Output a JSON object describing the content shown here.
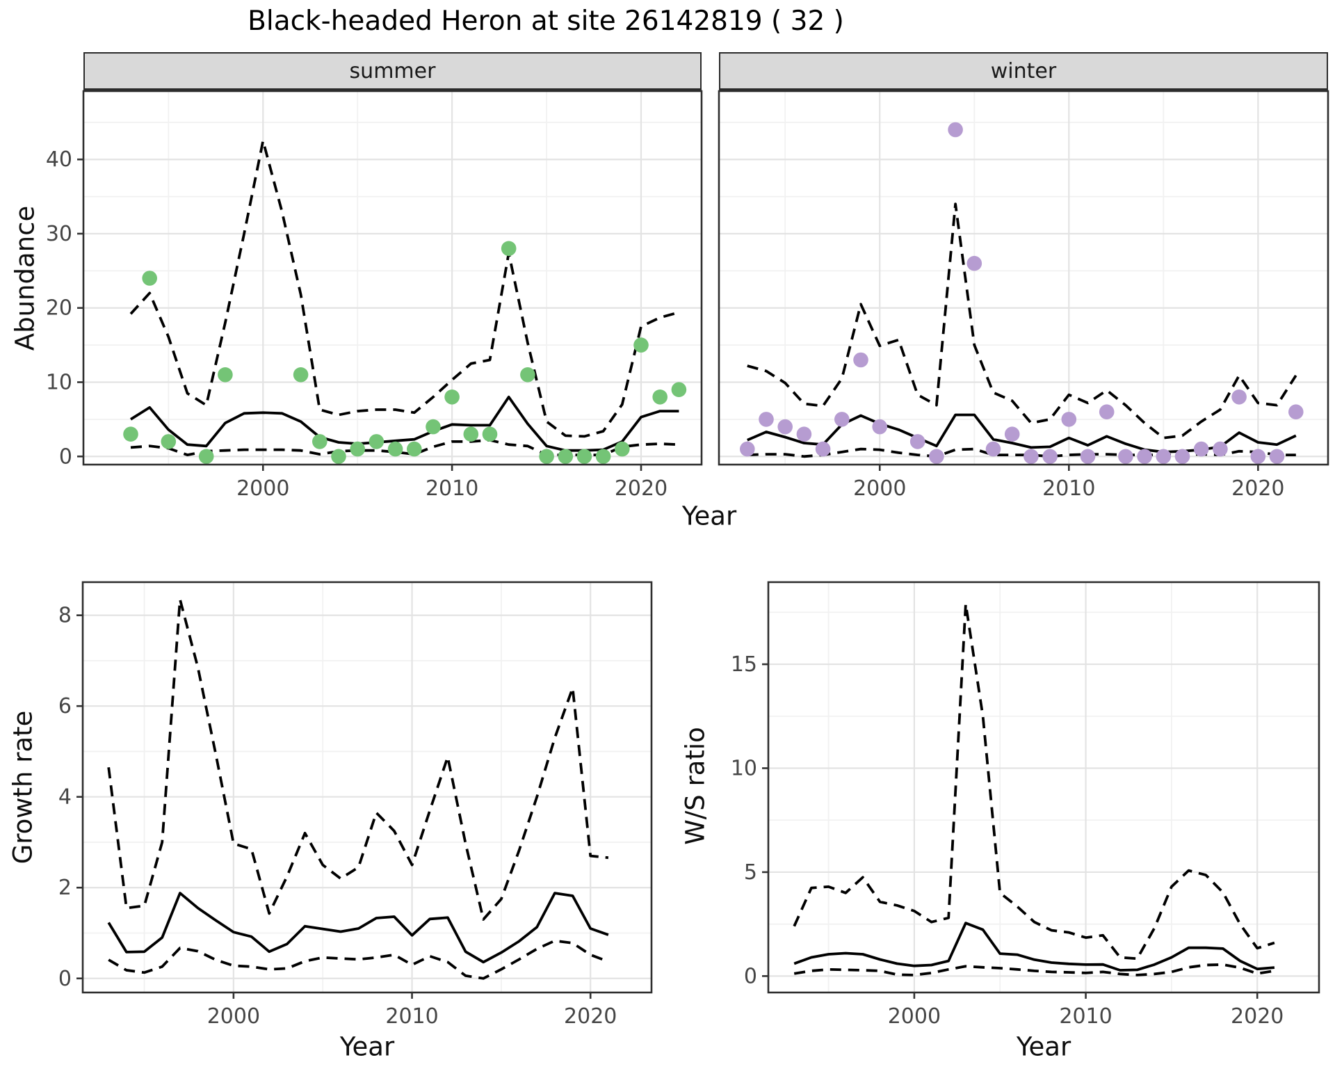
{
  "title": "Black-headed Heron at site 26142819 ( 32 )",
  "facets": {
    "summer": "summer",
    "winter": "winter"
  },
  "axes": {
    "abundance": "Abundance",
    "year": "Year",
    "growth": "Growth rate",
    "ws": "W/S ratio"
  },
  "colors": {
    "summer_point": "#74c476",
    "winter_point": "#b69cd1",
    "line": "#000000",
    "grid_major": "#e3e3e3",
    "grid_minor": "#f1f1f1",
    "panel_border": "#2e2e2e",
    "tick_mark": "#333333",
    "tick_text": "#454545",
    "strip_bg": "#d9d9d9"
  },
  "chart_data": [
    {
      "name": "summer-abundance",
      "type": "line+scatter",
      "facet": "summer",
      "ylabel": "Abundance",
      "xlabel": "Year",
      "x": [
        1993,
        1994,
        1995,
        1996,
        1997,
        1998,
        1999,
        2000,
        2001,
        2002,
        2003,
        2004,
        2005,
        2006,
        2007,
        2008,
        2009,
        2010,
        2011,
        2012,
        2013,
        2014,
        2015,
        2016,
        2017,
        2018,
        2019,
        2020,
        2021,
        2022
      ],
      "points": [
        3,
        24,
        2,
        null,
        0,
        11,
        null,
        null,
        null,
        11,
        2,
        0,
        1,
        2,
        1,
        1,
        4,
        8,
        3,
        3,
        28,
        11,
        0,
        0,
        0,
        0,
        1,
        15,
        8,
        9
      ],
      "median": [
        5.0,
        6.6,
        3.6,
        1.6,
        1.4,
        4.5,
        5.8,
        5.9,
        5.8,
        4.7,
        2.6,
        1.9,
        1.7,
        1.9,
        2.1,
        2.3,
        3.4,
        4.3,
        4.2,
        4.2,
        8.0,
        4.4,
        1.4,
        0.8,
        0.8,
        0.9,
        2.0,
        5.3,
        6.1,
        6.1
      ],
      "upper": [
        19.2,
        22.0,
        16.1,
        8.5,
        6.9,
        18.0,
        30.0,
        42.5,
        33.0,
        21.8,
        6.3,
        5.6,
        6.1,
        6.3,
        6.3,
        5.9,
        8.0,
        10.3,
        12.5,
        13.0,
        27.4,
        15.3,
        4.7,
        2.8,
        2.7,
        3.4,
        7.0,
        17.5,
        18.7,
        19.4
      ],
      "lower": [
        1.2,
        1.4,
        1.1,
        0.2,
        0.7,
        0.8,
        0.9,
        0.9,
        0.9,
        0.8,
        0.3,
        0.7,
        0.8,
        0.8,
        0.6,
        0.3,
        1.3,
        2.0,
        2.0,
        2.2,
        1.6,
        1.4,
        0.2,
        0.2,
        0.2,
        0.2,
        1.3,
        1.6,
        1.7,
        1.6
      ],
      "point_color": "#74c476",
      "xlim": [
        1990.5,
        2023.2
      ],
      "ylim": [
        -1.1,
        49.2
      ],
      "xticks": [
        2000,
        2010,
        2020
      ],
      "xticks_minor": [
        1995,
        2005,
        2015
      ],
      "yticks": [
        0,
        10,
        20,
        30,
        40
      ],
      "yticks_minor": [
        5,
        15,
        25,
        35,
        45
      ],
      "show_ytick_labels": true
    },
    {
      "name": "winter-abundance",
      "type": "line+scatter",
      "facet": "winter",
      "ylabel": "Abundance",
      "xlabel": "Year",
      "x": [
        1993,
        1994,
        1995,
        1996,
        1997,
        1998,
        1999,
        2000,
        2001,
        2002,
        2003,
        2004,
        2005,
        2006,
        2007,
        2008,
        2009,
        2010,
        2011,
        2012,
        2013,
        2014,
        2015,
        2016,
        2017,
        2018,
        2019,
        2020,
        2021,
        2022
      ],
      "points": [
        1,
        5,
        4,
        3,
        1,
        5,
        13,
        4,
        null,
        2,
        0,
        44,
        26,
        1,
        3,
        0,
        0,
        5,
        0,
        6,
        0,
        0,
        0,
        0,
        1,
        1,
        8,
        0,
        0,
        6
      ],
      "median": [
        2.2,
        3.3,
        2.6,
        1.8,
        1.6,
        4.3,
        5.5,
        4.4,
        3.6,
        2.5,
        1.4,
        5.6,
        5.6,
        2.3,
        1.8,
        1.2,
        1.3,
        2.5,
        1.5,
        2.7,
        1.7,
        0.9,
        0.6,
        0.7,
        0.9,
        1.3,
        3.2,
        1.9,
        1.6,
        2.8
      ],
      "upper": [
        12.2,
        11.5,
        9.9,
        7.1,
        6.8,
        10.5,
        20.5,
        14.9,
        15.7,
        8.3,
        6.9,
        34.0,
        15.0,
        8.6,
        7.5,
        4.5,
        5.0,
        8.3,
        7.2,
        8.9,
        6.9,
        4.5,
        2.5,
        2.8,
        4.7,
        6.3,
        10.9,
        7.2,
        6.9,
        10.9
      ],
      "lower": [
        0.2,
        0.3,
        0.3,
        0.0,
        0.2,
        0.6,
        1.0,
        0.9,
        0.5,
        0.2,
        0.0,
        0.9,
        1.0,
        0.2,
        0.2,
        0.2,
        0.0,
        0.2,
        0.3,
        0.3,
        0.2,
        0.2,
        0.2,
        0.2,
        0.3,
        0.2,
        0.7,
        0.6,
        0.2,
        0.2
      ],
      "point_color": "#b69cd1",
      "xlim": [
        1991.5,
        2023.7
      ],
      "ylim": [
        -1.1,
        49.2
      ],
      "xticks": [
        2000,
        2010,
        2020
      ],
      "xticks_minor": [
        1995,
        2005,
        2015
      ],
      "yticks": [
        0,
        10,
        20,
        30,
        40
      ],
      "yticks_minor": [
        5,
        15,
        25,
        35,
        45
      ],
      "show_ytick_labels": false
    },
    {
      "name": "growth-rate",
      "type": "line",
      "ylabel": "Growth rate",
      "xlabel": "Year",
      "x": [
        1993,
        1994,
        1995,
        1996,
        1997,
        1998,
        1999,
        2000,
        2001,
        2002,
        2003,
        2004,
        2005,
        2006,
        2007,
        2008,
        2009,
        2010,
        2011,
        2012,
        2013,
        2014,
        2015,
        2016,
        2017,
        2018,
        2019,
        2020,
        2021
      ],
      "median": [
        1.23,
        0.58,
        0.59,
        0.9,
        1.88,
        1.55,
        1.28,
        1.02,
        0.92,
        0.59,
        0.76,
        1.15,
        1.09,
        1.03,
        1.1,
        1.33,
        1.36,
        0.95,
        1.31,
        1.34,
        0.59,
        0.36,
        0.57,
        0.82,
        1.13,
        1.88,
        1.82,
        1.1,
        0.96
      ],
      "upper": [
        4.65,
        1.55,
        1.6,
        3.0,
        8.35,
        6.85,
        4.95,
        2.97,
        2.85,
        1.43,
        2.25,
        3.2,
        2.5,
        2.2,
        2.45,
        3.65,
        3.25,
        2.5,
        3.7,
        4.88,
        2.97,
        1.3,
        1.75,
        2.82,
        4.0,
        5.3,
        6.4,
        2.7,
        2.66
      ],
      "lower": [
        0.41,
        0.18,
        0.13,
        0.26,
        0.67,
        0.6,
        0.41,
        0.28,
        0.26,
        0.2,
        0.22,
        0.38,
        0.46,
        0.44,
        0.42,
        0.46,
        0.52,
        0.3,
        0.49,
        0.36,
        0.06,
        0.0,
        0.2,
        0.42,
        0.65,
        0.83,
        0.78,
        0.52,
        0.37
      ],
      "point_color": null,
      "xlim": [
        1991.55,
        2023.42
      ],
      "ylim": [
        -0.31,
        8.73
      ],
      "xticks": [
        2000,
        2010,
        2020
      ],
      "xticks_minor": [
        1995,
        2005,
        2015
      ],
      "yticks": [
        0,
        2,
        4,
        6,
        8
      ],
      "yticks_minor": [
        1,
        3,
        5,
        7
      ],
      "show_ytick_labels": true
    },
    {
      "name": "ws-ratio",
      "type": "line",
      "ylabel": "W/S ratio",
      "xlabel": "Year",
      "x": [
        1993,
        1994,
        1995,
        1996,
        1997,
        1998,
        1999,
        2000,
        2001,
        2002,
        2003,
        2004,
        2005,
        2006,
        2007,
        2008,
        2009,
        2010,
        2011,
        2012,
        2013,
        2014,
        2015,
        2016,
        2017,
        2018,
        2019,
        2020,
        2021
      ],
      "median": [
        0.6,
        0.9,
        1.05,
        1.1,
        1.05,
        0.8,
        0.6,
        0.49,
        0.53,
        0.73,
        2.55,
        2.23,
        1.08,
        1.03,
        0.79,
        0.65,
        0.59,
        0.55,
        0.56,
        0.28,
        0.3,
        0.55,
        0.9,
        1.36,
        1.36,
        1.32,
        0.73,
        0.34,
        0.41
      ],
      "upper": [
        2.4,
        4.24,
        4.3,
        4.0,
        4.75,
        3.57,
        3.4,
        3.13,
        2.6,
        2.8,
        17.9,
        12.5,
        4.0,
        3.35,
        2.6,
        2.2,
        2.1,
        1.85,
        1.96,
        0.9,
        0.84,
        2.3,
        4.3,
        5.08,
        4.86,
        4.02,
        2.5,
        1.34,
        1.6
      ],
      "lower": [
        0.12,
        0.25,
        0.32,
        0.3,
        0.28,
        0.25,
        0.07,
        0.05,
        0.15,
        0.32,
        0.47,
        0.42,
        0.38,
        0.32,
        0.25,
        0.2,
        0.18,
        0.15,
        0.2,
        0.1,
        0.05,
        0.1,
        0.2,
        0.42,
        0.53,
        0.55,
        0.4,
        0.12,
        0.25
      ],
      "point_color": null,
      "xlim": [
        1991.49,
        2023.6
      ],
      "ylim": [
        -0.79,
        18.95
      ],
      "xticks": [
        2000,
        2010,
        2020
      ],
      "xticks_minor": [
        1995,
        2005,
        2015
      ],
      "yticks": [
        0,
        5,
        10,
        15
      ],
      "yticks_minor": [
        2.5,
        7.5,
        12.5,
        17.5
      ],
      "show_ytick_labels": true
    }
  ]
}
